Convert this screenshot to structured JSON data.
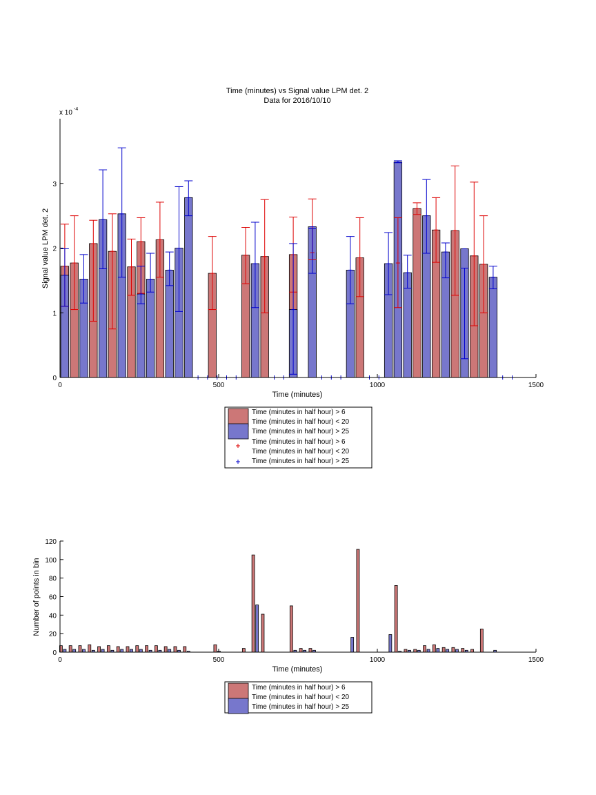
{
  "top_chart": {
    "title_line1": "Time (minutes) vs Signal value LPM det. 2",
    "title_line2": "Data for 2016/10/10",
    "xlabel": "Time (minutes)",
    "ylabel": "Signal value LPM det. 2",
    "exponent_label": "x 10",
    "exponent_sup": "-4",
    "legend": [
      "Time (minutes in half hour) > 6",
      "Time (minutes in half hour) < 20",
      "Time (minutes in half hour) > 25",
      "Time (minutes in half hour) > 6",
      "Time (minutes in half hour) < 20",
      "Time (minutes in half hour) > 25"
    ]
  },
  "bottom_chart": {
    "xlabel": "Time (minutes)",
    "ylabel": "Number of points in bin",
    "legend": [
      "Time (minutes in half hour) > 6",
      "Time (minutes in half hour) < 20",
      "Time (minutes in half hour) > 25"
    ]
  },
  "colors": {
    "red_fill": "#cc7777",
    "blue_fill": "#7777cc",
    "red_line": "#dd0000",
    "blue_line": "#0000cc"
  },
  "chart_data": [
    {
      "type": "bar",
      "title": "Time (minutes) vs Signal value LPM det. 2 / Data for 2016/10/10",
      "xlabel": "Time (minutes)",
      "ylabel": "Signal value LPM det. 2",
      "y_scale_note": "x 10^-4",
      "xlim": [
        0,
        1500
      ],
      "ylim": [
        0,
        4
      ],
      "xticks": [
        "0",
        "500",
        "1000",
        "1500"
      ],
      "yticks": [
        "0",
        "1",
        "2",
        "3"
      ],
      "series": [
        {
          "name": "Time (minutes in half hour) > 6 Time (minutes in half hour) < 20",
          "x": [
            15,
            45,
            105,
            165,
            225,
            255,
            315,
            480,
            585,
            645,
            735,
            795,
            945,
            1065,
            1125,
            1185,
            1245,
            1305,
            1335
          ],
          "values": [
            1.72,
            1.77,
            2.07,
            1.95,
            1.71,
            2.1,
            2.13,
            1.61,
            1.89,
            1.87,
            1.9,
            1.93,
            1.85,
            1.77,
            2.61,
            2.28,
            2.27,
            1.88,
            1.75
          ],
          "err_low": [
            1.1,
            1.05,
            0.87,
            0.75,
            1.27,
            1.3,
            1.55,
            1.05,
            1.45,
            1.0,
            1.32,
            1.82,
            1.25,
            1.08,
            2.52,
            1.78,
            1.27,
            0.8,
            1.0
          ],
          "err_high": [
            2.37,
            2.5,
            2.43,
            2.53,
            2.14,
            2.47,
            2.71,
            2.18,
            2.32,
            2.75,
            2.48,
            2.76,
            2.47,
            2.47,
            2.7,
            2.78,
            3.27,
            3.02,
            2.5
          ]
        },
        {
          "name": "Time (minutes in half hour) > 25",
          "x": [
            15,
            75,
            135,
            195,
            255,
            285,
            345,
            375,
            405,
            615,
            735,
            795,
            915,
            1035,
            1065,
            1095,
            1155,
            1215,
            1275,
            1365
          ],
          "values": [
            1.58,
            1.52,
            2.44,
            2.53,
            1.29,
            1.52,
            1.66,
            2.0,
            2.78,
            1.76,
            1.05,
            2.33,
            1.66,
            1.76,
            3.33,
            1.62,
            2.5,
            1.94,
            1.99,
            1.55
          ],
          "err_low": [
            1.1,
            1.15,
            1.68,
            1.55,
            1.14,
            1.32,
            1.42,
            1.02,
            2.5,
            1.08,
            0.05,
            1.61,
            1.14,
            1.28,
            3.32,
            1.38,
            1.92,
            1.54,
            0.29,
            1.37
          ],
          "err_high": [
            1.99,
            1.9,
            3.21,
            3.55,
            1.72,
            1.92,
            1.94,
            2.95,
            3.04,
            2.4,
            2.07,
            2.3,
            2.18,
            2.24,
            3.35,
            1.89,
            3.06,
            2.08,
            1.69,
            1.72
          ]
        }
      ],
      "empty_bins_x": [
        435,
        465,
        495,
        525,
        555,
        675,
        705,
        825,
        855,
        885,
        975,
        1005,
        1395,
        1425
      ]
    },
    {
      "type": "bar",
      "xlabel": "Time (minutes)",
      "ylabel": "Number of points in bin",
      "xlim": [
        0,
        1500
      ],
      "ylim": [
        0,
        120
      ],
      "xticks": [
        "0",
        "500",
        "1000",
        "1500"
      ],
      "yticks": [
        "0",
        "20",
        "40",
        "60",
        "80",
        "100",
        "120"
      ],
      "series": [
        {
          "name": "Time (minutes in half hour) > 6 Time (minutes in half hour) < 20",
          "x": [
            3,
            33,
            63,
            93,
            123,
            153,
            183,
            213,
            243,
            273,
            303,
            333,
            363,
            393,
            489,
            579,
            609,
            639,
            729,
            759,
            789,
            939,
            1059,
            1089,
            1119,
            1149,
            1179,
            1209,
            1239,
            1269,
            1299,
            1329
          ],
          "values": [
            7,
            7,
            7,
            8,
            6,
            7,
            6,
            6,
            7,
            7,
            7,
            6,
            6,
            6,
            8,
            4,
            105,
            41,
            50,
            4,
            4,
            111,
            72,
            3,
            3,
            7,
            8,
            5,
            5,
            4,
            3,
            25
          ]
        },
        {
          "name": "Time (minutes in half hour) > 25",
          "x": [
            15,
            45,
            75,
            105,
            135,
            165,
            195,
            225,
            255,
            285,
            315,
            345,
            375,
            405,
            501,
            621,
            741,
            771,
            801,
            921,
            1041,
            1071,
            1101,
            1131,
            1161,
            1191,
            1221,
            1251,
            1281,
            1371
          ],
          "values": [
            3,
            3,
            3,
            2,
            3,
            2,
            3,
            3,
            3,
            2,
            2,
            3,
            2,
            1,
            1,
            51,
            2,
            2,
            2,
            16,
            19,
            1,
            2,
            2,
            3,
            4,
            3,
            3,
            2,
            2
          ]
        }
      ]
    }
  ]
}
